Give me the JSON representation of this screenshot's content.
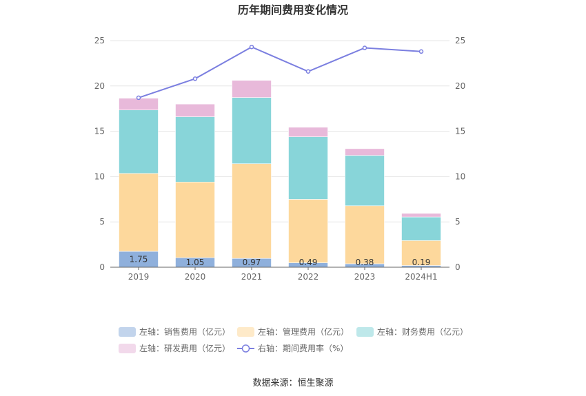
{
  "chart_data": {
    "type": "bar",
    "title": "历年期间费用变化情况",
    "categories": [
      "2019",
      "2020",
      "2021",
      "2022",
      "2023",
      "2024H1"
    ],
    "series": [
      {
        "name": "左轴：销售费用（亿元）",
        "axis": "left",
        "color": "#8fb0dc",
        "values": [
          1.75,
          1.05,
          0.97,
          0.49,
          0.38,
          0.19
        ]
      },
      {
        "name": "左轴：管理费用（亿元）",
        "axis": "left",
        "color": "#fdd89c",
        "values": [
          8.6,
          8.35,
          10.45,
          7.0,
          6.4,
          2.75
        ]
      },
      {
        "name": "左轴：财务费用（亿元）",
        "axis": "left",
        "color": "#88d5d9",
        "values": [
          7.0,
          7.2,
          7.3,
          6.9,
          5.55,
          2.6
        ]
      },
      {
        "name": "左轴：研发费用（亿元）",
        "axis": "left",
        "color": "#e8b9da",
        "values": [
          1.3,
          1.4,
          1.9,
          1.05,
          0.75,
          0.4
        ]
      },
      {
        "name": "右轴：期间费用率（%）",
        "axis": "right",
        "type": "line",
        "color": "#7b7fe0",
        "values": [
          18.7,
          20.8,
          24.3,
          21.6,
          24.2,
          23.8
        ]
      }
    ],
    "bar_labels": [
      "1.75",
      "1.05",
      "0.97",
      "0.49",
      "0.38",
      "0.19"
    ],
    "left_axis": {
      "min": 0,
      "max": 25,
      "ticks": [
        "0",
        "5",
        "10",
        "15",
        "20",
        "25"
      ]
    },
    "right_axis": {
      "min": 0,
      "max": 25,
      "ticks": [
        "0",
        "5",
        "10",
        "15",
        "20",
        "25"
      ]
    },
    "grid": true,
    "legend_position": "bottom"
  },
  "source_text": "数据来源：恒生聚源"
}
